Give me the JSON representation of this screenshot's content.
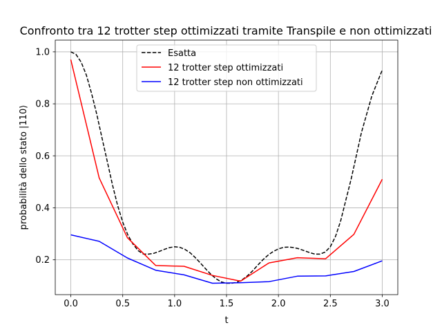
{
  "chart_data": {
    "type": "line",
    "title": "Confronto tra 12 trotter step ottimizzati tramite Transpile e non ottimizzati",
    "xlabel": "t",
    "ylabel": "probabilità dello stato |110⟩",
    "xlim": [
      -0.15,
      3.15
    ],
    "ylim": [
      0.066,
      1.045
    ],
    "xticks": [
      0.0,
      0.5,
      1.0,
      1.5,
      2.0,
      2.5,
      3.0
    ],
    "xtick_labels": [
      "0.0",
      "0.5",
      "1.0",
      "1.5",
      "2.0",
      "2.5",
      "3.0"
    ],
    "yticks": [
      0.2,
      0.4,
      0.6,
      0.8,
      1.0
    ],
    "ytick_labels": [
      "0.2",
      "0.4",
      "0.6",
      "0.8",
      "1.0"
    ],
    "grid": true,
    "legend_position": "top-center",
    "series": [
      {
        "name": "Esatta",
        "color": "#000000",
        "style": "dashed",
        "x": [
          0.0,
          0.05,
          0.1,
          0.15,
          0.2,
          0.25,
          0.3,
          0.35,
          0.4,
          0.45,
          0.5,
          0.55,
          0.6,
          0.65,
          0.7,
          0.75,
          0.8,
          0.85,
          0.9,
          0.95,
          1.0,
          1.05,
          1.1,
          1.15,
          1.2,
          1.25,
          1.3,
          1.35,
          1.4,
          1.45,
          1.5,
          1.55,
          1.6,
          1.65,
          1.7,
          1.75,
          1.8,
          1.85,
          1.9,
          1.95,
          2.0,
          2.05,
          2.1,
          2.15,
          2.2,
          2.25,
          2.3,
          2.35,
          2.4,
          2.45,
          2.5,
          2.55,
          2.6,
          2.65,
          2.7,
          2.75,
          2.8,
          2.85,
          2.9,
          2.95,
          3.0
        ],
        "y": [
          1.0,
          0.99,
          0.96,
          0.91,
          0.84,
          0.76,
          0.67,
          0.58,
          0.49,
          0.41,
          0.345,
          0.295,
          0.26,
          0.235,
          0.222,
          0.222,
          0.225,
          0.232,
          0.24,
          0.247,
          0.25,
          0.248,
          0.24,
          0.227,
          0.208,
          0.187,
          0.165,
          0.144,
          0.127,
          0.115,
          0.11,
          0.11,
          0.114,
          0.123,
          0.138,
          0.157,
          0.179,
          0.2,
          0.218,
          0.232,
          0.242,
          0.248,
          0.249,
          0.247,
          0.242,
          0.235,
          0.228,
          0.222,
          0.222,
          0.23,
          0.25,
          0.29,
          0.35,
          0.43,
          0.51,
          0.6,
          0.69,
          0.76,
          0.83,
          0.88,
          0.93
        ]
      },
      {
        "name": "12 trotter step ottimizzati",
        "color": "#ff0000",
        "style": "solid",
        "x": [
          0.0,
          0.273,
          0.545,
          0.818,
          1.091,
          1.364,
          1.636,
          1.909,
          2.182,
          2.455,
          2.727,
          3.0
        ],
        "y": [
          0.97,
          0.515,
          0.285,
          0.178,
          0.175,
          0.14,
          0.118,
          0.188,
          0.208,
          0.204,
          0.298,
          0.51
        ]
      },
      {
        "name": "12 trotter step non ottimizzati",
        "color": "#0000ff",
        "style": "solid",
        "x": [
          0.0,
          0.273,
          0.545,
          0.818,
          1.091,
          1.364,
          1.636,
          1.909,
          2.182,
          2.455,
          2.727,
          3.0
        ],
        "y": [
          0.296,
          0.271,
          0.207,
          0.16,
          0.142,
          0.11,
          0.112,
          0.116,
          0.137,
          0.138,
          0.155,
          0.196
        ]
      }
    ]
  }
}
